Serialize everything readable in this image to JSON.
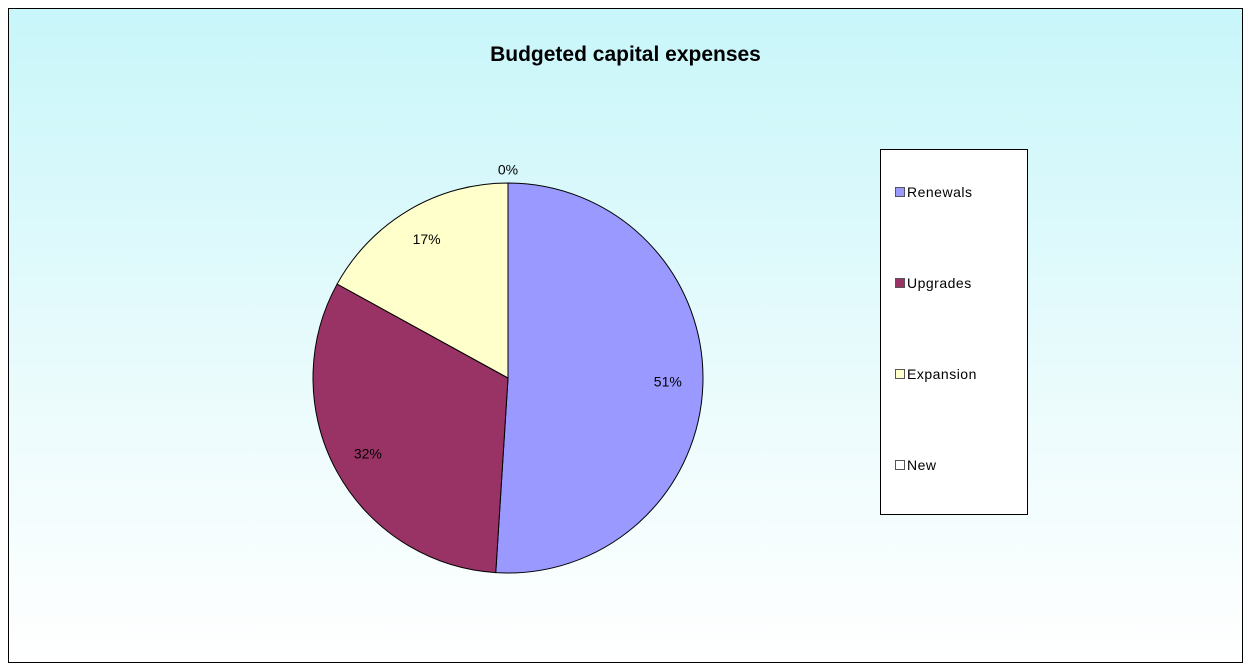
{
  "chart_data": {
    "type": "pie",
    "title": "Budgeted capital expenses",
    "slices": [
      {
        "name": "Renewals",
        "value": 51,
        "label": "51%",
        "color": "#9999ff"
      },
      {
        "name": "Upgrades",
        "value": 32,
        "label": "32%",
        "color": "#993366"
      },
      {
        "name": "Expansion",
        "value": 17,
        "label": "17%",
        "color": "#ffffcc"
      },
      {
        "name": "New",
        "value": 0,
        "label": "0%",
        "color": "#ffffff"
      }
    ],
    "legend_position": "right",
    "background_colors": [
      "#c8f6fa",
      "#ffffff"
    ]
  }
}
